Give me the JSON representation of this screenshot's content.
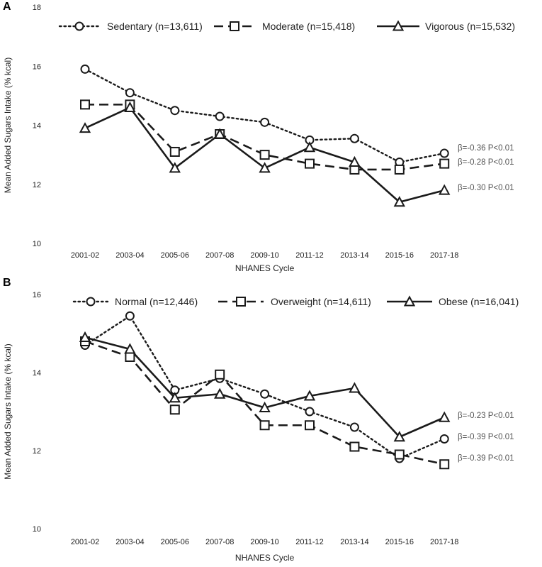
{
  "chart_data": [
    {
      "type": "line",
      "panel": "A",
      "categories": [
        "2001-02",
        "2003-04",
        "2005-06",
        "2007-08",
        "2009-10",
        "2011-12",
        "2013-14",
        "2015-16",
        "2017-18"
      ],
      "xlabel": "NHANES Cycle",
      "ylabel": "Mean Added Sugars Intake (% kcal)",
      "ylim": [
        10,
        18
      ],
      "yticks": [
        "10",
        "12",
        "14",
        "16",
        "18"
      ],
      "series": [
        {
          "name": "Sedentary (n=13,611)",
          "style": "dotted",
          "marker": "circle",
          "values": [
            15.9,
            15.1,
            14.5,
            14.3,
            14.1,
            13.5,
            13.55,
            12.75,
            13.05
          ],
          "annotation": "β=-0.36 P<0.01"
        },
        {
          "name": "Moderate (n=15,418)",
          "style": "dashed",
          "marker": "square",
          "values": [
            14.7,
            14.7,
            13.1,
            13.7,
            13.0,
            12.7,
            12.5,
            12.5,
            12.7
          ],
          "annotation": "β=-0.28 P<0.01"
        },
        {
          "name": "Vigorous (n=15,532)",
          "style": "solid",
          "marker": "triangle",
          "values": [
            13.9,
            14.6,
            12.55,
            13.7,
            12.55,
            13.25,
            12.75,
            11.4,
            11.8
          ],
          "annotation": "β=-0.30 P<0.01"
        }
      ]
    },
    {
      "type": "line",
      "panel": "B",
      "categories": [
        "2001-02",
        "2003-04",
        "2005-06",
        "2007-08",
        "2009-10",
        "2011-12",
        "2013-14",
        "2015-16",
        "2017-18"
      ],
      "xlabel": "NHANES Cycle",
      "ylabel": "Mean Added Sugars Intake (% kcal)",
      "ylim": [
        10,
        16
      ],
      "yticks": [
        "10",
        "12",
        "14",
        "16"
      ],
      "series": [
        {
          "name": "Normal (n=12,446)",
          "style": "dotted",
          "marker": "circle",
          "values": [
            14.7,
            15.45,
            13.55,
            13.85,
            13.45,
            13.0,
            12.6,
            11.8,
            12.3
          ],
          "annotation": "β=-0.39 P<0.01"
        },
        {
          "name": "Overweight (n=14,611)",
          "style": "dashed",
          "marker": "square",
          "values": [
            14.8,
            14.4,
            13.05,
            13.95,
            12.65,
            12.65,
            12.1,
            11.9,
            11.65
          ],
          "annotation": "β=-0.39 P<0.01"
        },
        {
          "name": "Obese (n=16,041)",
          "style": "solid",
          "marker": "triangle",
          "values": [
            14.9,
            14.6,
            13.35,
            13.45,
            13.1,
            13.4,
            13.6,
            12.35,
            12.85
          ],
          "annotation": "β=-0.23 P<0.01"
        }
      ]
    }
  ]
}
